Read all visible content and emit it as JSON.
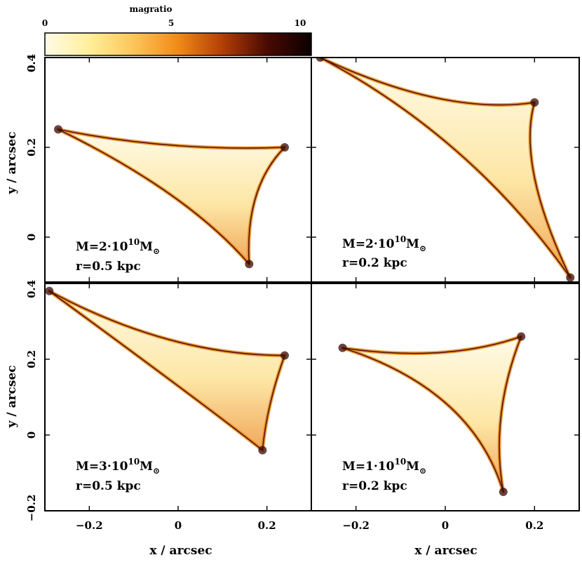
{
  "chart_data": {
    "type": "heatmap",
    "colorbar": {
      "title": "magratio",
      "range": [
        0,
        10
      ],
      "ticks": [
        "0",
        "5",
        "10"
      ],
      "stops": [
        "#fffbe6",
        "#ffef9a",
        "#fdc55a",
        "#f08a17",
        "#b23e06",
        "#4a0a03",
        "#0a0000"
      ]
    },
    "xlabel": "x / arcsec",
    "ylabel": "y / arcsec",
    "panels": [
      {
        "id": "top-left",
        "annotation_mass": "M=2·10",
        "annotation_exp": "10",
        "annotation_unit": "M",
        "annotation_sun": "⊙",
        "annotation_radius": "r=0.5 kpc",
        "xlim": [
          -0.3,
          0.3
        ],
        "ylim": [
          -0.1,
          0.4
        ],
        "yticks": [
          {
            "value": 0.4,
            "label": "0.4"
          },
          {
            "value": 0.2,
            "label": "0.2"
          },
          {
            "value": 0.0,
            "label": "0"
          }
        ],
        "caustic_vertices": [
          [
            -0.27,
            0.24
          ],
          [
            0.24,
            0.2
          ],
          [
            0.16,
            -0.06
          ]
        ],
        "curvature": [
          [
            -0.02,
            0.19
          ],
          [
            0.15,
            0.11
          ],
          [
            0.02,
            0.1
          ]
        ]
      },
      {
        "id": "top-right",
        "annotation_mass": "M=2·10",
        "annotation_exp": "10",
        "annotation_unit": "M",
        "annotation_sun": "⊙",
        "annotation_radius": "r=0.2 kpc",
        "xlim": [
          -0.3,
          0.3
        ],
        "ylim": [
          -0.1,
          0.4
        ],
        "yticks": [
          {
            "value": 0.4,
            "label": "0.4"
          }
        ],
        "caustic_vertices": [
          [
            -0.28,
            0.4
          ],
          [
            0.2,
            0.3
          ],
          [
            0.28,
            -0.09
          ]
        ],
        "curvature": [
          [
            0.0,
            0.27
          ],
          [
            0.16,
            0.16
          ],
          [
            0.06,
            0.22
          ]
        ]
      },
      {
        "id": "bottom-left",
        "annotation_mass": "M=3·10",
        "annotation_exp": "10",
        "annotation_unit": "M",
        "annotation_sun": "⊙",
        "annotation_radius": "r=0.5 kpc",
        "xlim": [
          -0.3,
          0.3
        ],
        "ylim": [
          -0.2,
          0.4
        ],
        "yticks": [
          {
            "value": 0.4,
            "label": "0.4"
          },
          {
            "value": 0.2,
            "label": "0.2"
          },
          {
            "value": 0.0,
            "label": "0"
          },
          {
            "value": -0.2,
            "label": "−0.2"
          }
        ],
        "xticks": [
          {
            "value": -0.2,
            "label": "−0.2"
          },
          {
            "value": 0.0,
            "label": "0"
          },
          {
            "value": 0.2,
            "label": "0.2"
          }
        ],
        "caustic_vertices": [
          [
            -0.29,
            0.38
          ],
          [
            0.24,
            0.21
          ],
          [
            0.19,
            -0.04
          ]
        ],
        "curvature": [
          [
            -0.02,
            0.21
          ],
          [
            0.2,
            0.08
          ],
          [
            0.06,
            0.08
          ]
        ]
      },
      {
        "id": "bottom-right",
        "annotation_mass": "M=1·10",
        "annotation_exp": "10",
        "annotation_unit": "M",
        "annotation_sun": "⊙",
        "annotation_radius": "r=0.2 kpc",
        "xlim": [
          -0.3,
          0.3
        ],
        "ylim": [
          -0.2,
          0.4
        ],
        "xticks": [
          {
            "value": -0.2,
            "label": "−0.2"
          },
          {
            "value": 0.0,
            "label": "0"
          },
          {
            "value": 0.2,
            "label": "0.2"
          }
        ],
        "caustic_vertices": [
          [
            -0.23,
            0.23
          ],
          [
            0.17,
            0.26
          ],
          [
            0.13,
            -0.15
          ]
        ],
        "curvature": [
          [
            0.0,
            0.19
          ],
          [
            0.1,
            0.05
          ],
          [
            0.06,
            0.12
          ]
        ]
      }
    ]
  }
}
